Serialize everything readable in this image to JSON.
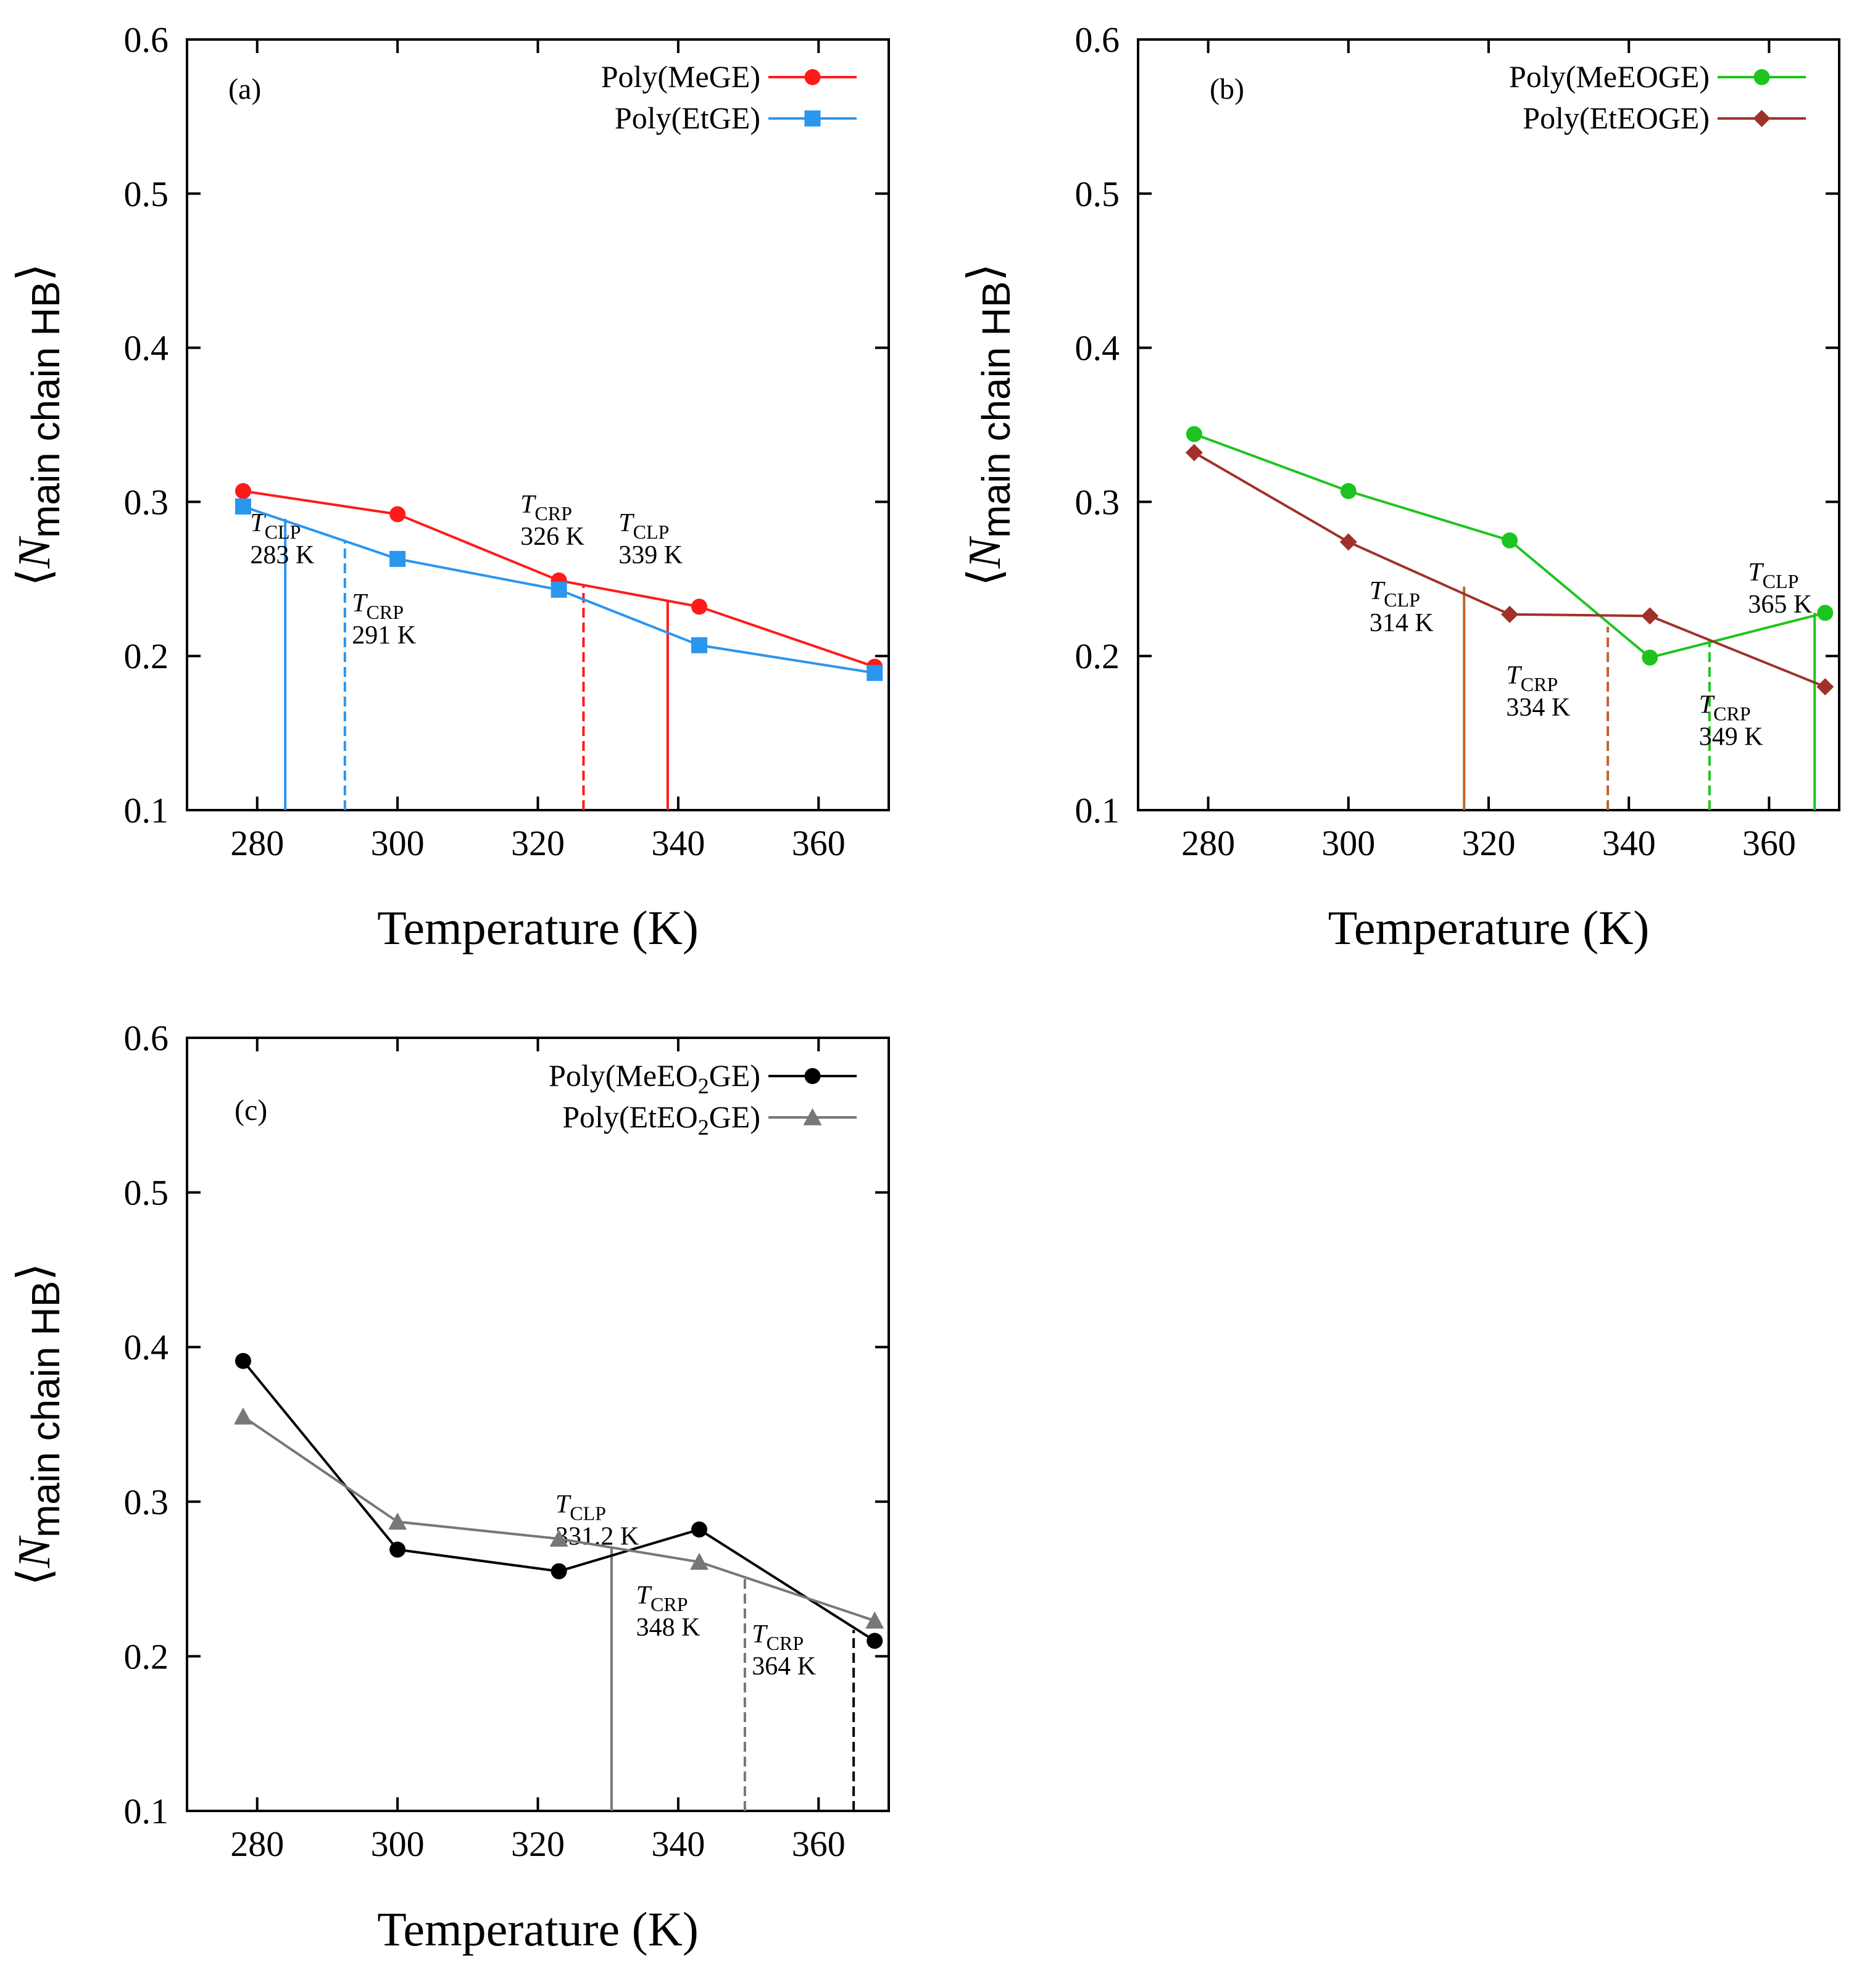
{
  "chart_data": [
    {
      "type": "line",
      "panel_label": "(a)",
      "xlabel": "Temperature (K)",
      "ylabel": {
        "open": "⟨",
        "symbol": "N",
        "subscript": "main chain HB",
        "close": "⟩"
      },
      "xlim": [
        270,
        370
      ],
      "ylim": [
        0.1,
        0.6
      ],
      "xticks": [
        "280",
        "300",
        "320",
        "340",
        "360"
      ],
      "yticks": [
        "0.1",
        "0.2",
        "0.3",
        "0.4",
        "0.5",
        "0.6"
      ],
      "legend_position": "top-right",
      "series": [
        {
          "name": "Poly(MeGE)",
          "name_parts": [
            "Poly(MeGE)"
          ],
          "color": "#ff1a1a",
          "marker": "circle",
          "x": [
            278,
            300,
            323,
            343,
            368
          ],
          "y": [
            0.307,
            0.292,
            0.249,
            0.232,
            0.193
          ]
        },
        {
          "name": "Poly(EtGE)",
          "name_parts": [
            "Poly(EtGE)"
          ],
          "color": "#2b96ee",
          "marker": "square",
          "x": [
            278,
            300,
            323,
            343,
            368
          ],
          "y": [
            0.297,
            0.263,
            0.243,
            0.207,
            0.189
          ]
        }
      ],
      "annotations": [
        {
          "sym": "T",
          "sub": "CLP",
          "value": "283 K",
          "x": 284,
          "y_top": 0.289,
          "color": "#2b96ee",
          "dash": false,
          "label_at": [
            279,
            0.281
          ]
        },
        {
          "sym": "T",
          "sub": "CRP",
          "value": "291 K",
          "x": 292.5,
          "y_top": 0.275,
          "color": "#2b96ee",
          "dash": true,
          "label_at": [
            293.5,
            0.229
          ]
        },
        {
          "sym": "T",
          "sub": "CRP",
          "value": "326 K",
          "x": 326.5,
          "y_top": 0.246,
          "color": "#ff1a1a",
          "dash": true,
          "label_at": [
            317.5,
            0.293
          ]
        },
        {
          "sym": "T",
          "sub": "CLP",
          "value": "339 K",
          "x": 338.5,
          "y_top": 0.236,
          "color": "#ff1a1a",
          "dash": false,
          "label_at": [
            331.5,
            0.281
          ]
        }
      ]
    },
    {
      "type": "line",
      "panel_label": "(b)",
      "xlabel": "Temperature (K)",
      "ylabel": {
        "open": "⟨",
        "symbol": "N",
        "subscript": "main chain HB",
        "close": "⟩"
      },
      "xlim": [
        270,
        370
      ],
      "ylim": [
        0.1,
        0.6
      ],
      "xticks": [
        "280",
        "300",
        "320",
        "340",
        "360"
      ],
      "yticks": [
        "0.1",
        "0.2",
        "0.3",
        "0.4",
        "0.5",
        "0.6"
      ],
      "legend_position": "top-right",
      "series": [
        {
          "name": "Poly(MeEOGE)",
          "name_parts": [
            "Poly(MeEOGE)"
          ],
          "color": "#1ec41e",
          "marker": "circle",
          "x": [
            278,
            300,
            323,
            343,
            368
          ],
          "y": [
            0.344,
            0.307,
            0.275,
            0.199,
            0.228
          ]
        },
        {
          "name": "Poly(EtEOGE)",
          "name_parts": [
            "Poly(EtEOGE)"
          ],
          "color": "#a0312a",
          "marker": "diamond",
          "x": [
            278,
            300,
            323,
            343,
            368
          ],
          "y": [
            0.332,
            0.274,
            0.227,
            0.226,
            0.18
          ]
        }
      ],
      "annotations": [
        {
          "sym": "T",
          "sub": "CLP",
          "value": "314 K",
          "x": 316.5,
          "y_top": 0.245,
          "color": "#c0622a",
          "dash": false,
          "label_at": [
            303,
            0.237
          ]
        },
        {
          "sym": "T",
          "sub": "CRP",
          "value": "334 K",
          "x": 337,
          "y_top": 0.219,
          "color": "#c0622a",
          "dash": true,
          "label_at": [
            322.5,
            0.182
          ]
        },
        {
          "sym": "T",
          "sub": "CRP",
          "value": "349 K",
          "x": 351.5,
          "y_top": 0.21,
          "color": "#1ec41e",
          "dash": true,
          "label_at": [
            350,
            0.163
          ]
        },
        {
          "sym": "T",
          "sub": "CLP",
          "value": "365 K",
          "x": 366.5,
          "y_top": 0.228,
          "color": "#1ec41e",
          "dash": false,
          "label_at": [
            357,
            0.249
          ]
        }
      ]
    },
    {
      "type": "line",
      "panel_label": "(c)",
      "xlabel": "Temperature (K)",
      "ylabel": {
        "open": "⟨",
        "symbol": "N",
        "subscript": "main chain HB",
        "close": "⟩"
      },
      "xlim": [
        270,
        370
      ],
      "ylim": [
        0.1,
        0.6
      ],
      "xticks": [
        "280",
        "300",
        "320",
        "340",
        "360"
      ],
      "yticks": [
        "0.1",
        "0.2",
        "0.3",
        "0.4",
        "0.5",
        "0.6"
      ],
      "legend_position": "top-right",
      "series": [
        {
          "name": "Poly(MeEO2GE)",
          "name_parts": [
            "Poly(MeEO",
            "2",
            "GE)"
          ],
          "color": "#000000",
          "marker": "circle",
          "x": [
            278,
            300,
            323,
            343,
            368
          ],
          "y": [
            0.391,
            0.269,
            0.255,
            0.282,
            0.21
          ]
        },
        {
          "name": "Poly(EtEO2GE)",
          "name_parts": [
            "Poly(EtEO",
            "2",
            "GE)"
          ],
          "color": "#777777",
          "marker": "triangle",
          "x": [
            278,
            300,
            323,
            343,
            368
          ],
          "y": [
            0.355,
            0.287,
            0.276,
            0.261,
            0.223
          ]
        }
      ],
      "annotations": [
        {
          "sym": "T",
          "sub": "CLP",
          "value": "331.2 K",
          "x": 330.5,
          "y_top": 0.271,
          "color": "#777777",
          "dash": false,
          "label_at": [
            322.5,
            0.293
          ]
        },
        {
          "sym": "T",
          "sub": "CRP",
          "value": "348 K",
          "x": 349.5,
          "y_top": 0.253,
          "color": "#777777",
          "dash": true,
          "label_at": [
            334,
            0.234
          ]
        },
        {
          "sym": "T",
          "sub": "CRP",
          "value": "364 K",
          "x": 365,
          "y_top": 0.217,
          "color": "#000000",
          "dash": true,
          "label_at": [
            350.5,
            0.209
          ]
        }
      ]
    }
  ]
}
